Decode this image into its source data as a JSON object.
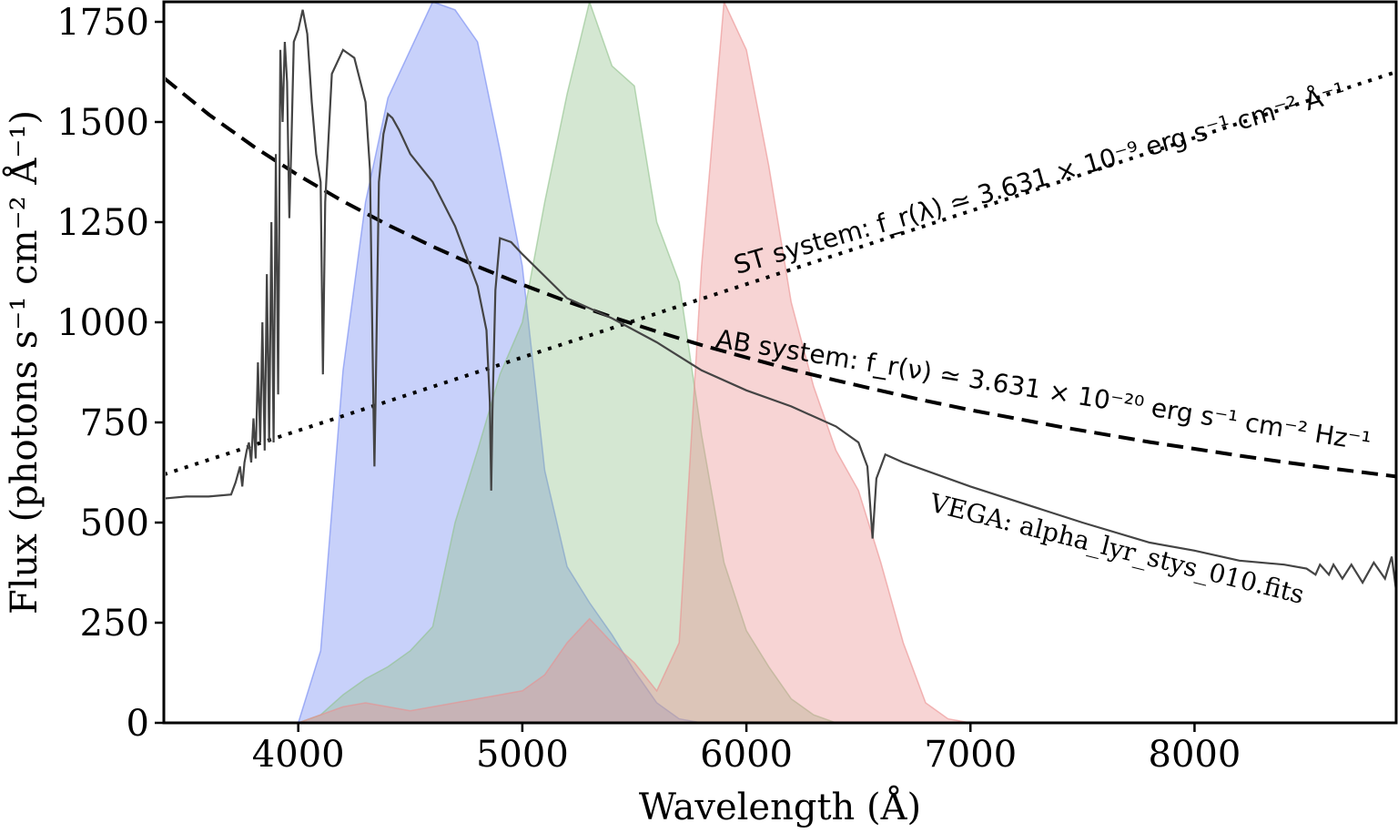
{
  "chart_data": {
    "type": "line",
    "xlabel": "Wavelength  (Å)",
    "ylabel": "Flux  (photons s⁻¹ cm⁻² Å⁻¹)",
    "xlim": [
      3400,
      8900
    ],
    "ylim": [
      0,
      1800
    ],
    "xticks": [
      4000,
      5000,
      6000,
      7000,
      8000
    ],
    "yticks": [
      0,
      250,
      500,
      750,
      1000,
      1250,
      1500,
      1750
    ],
    "grid": false,
    "legend": "none",
    "annotations": {
      "st": "ST system: f_r(λ) ≃ 3.631 × 10⁻⁹ erg s⁻¹ cm⁻² Å⁻¹",
      "ab": "AB system: f_r(ν) ≃ 3.631 × 10⁻²⁰ erg s⁻¹ cm⁻² Hz⁻¹",
      "vega": "VEGA: alpha_lyr_stys_010.fits"
    },
    "colors": {
      "blue": "#6f86f2",
      "green": "#8fc18a",
      "red": "#eb8d8d",
      "vega": "#444444",
      "reference": "#000000"
    },
    "series": [
      {
        "style": "dashed",
        "x": [
          3400,
          3600,
          3800,
          4000,
          4200,
          4400,
          4600,
          4800,
          5000,
          5200,
          5400,
          5600,
          5800,
          6000,
          6200,
          6400,
          6600,
          6800,
          7000,
          7200,
          7400,
          7600,
          7800,
          8000,
          8200,
          8400,
          8600,
          8800,
          8900
        ],
        "y": [
          1610,
          1519,
          1439,
          1367,
          1302,
          1243,
          1189,
          1139,
          1094,
          1052,
          1013,
          977,
          943,
          912,
          882,
          855,
          829,
          804,
          781,
          760,
          739,
          720,
          701,
          684,
          667,
          651,
          636,
          622,
          615
        ]
      },
      {
        "style": "dotted",
        "x": [
          3400,
          8900
        ],
        "y": [
          620,
          1625
        ]
      },
      {
        "style": "solid",
        "x": [
          3400,
          3500,
          3600,
          3700,
          3720,
          3740,
          3750,
          3760,
          3770,
          3780,
          3790,
          3800,
          3810,
          3820,
          3830,
          3840,
          3850,
          3860,
          3870,
          3880,
          3890,
          3900,
          3910,
          3920,
          3930,
          3940,
          3950,
          3960,
          3970,
          3980,
          4000,
          4020,
          4040,
          4060,
          4080,
          4100,
          4110,
          4120,
          4150,
          4200,
          4250,
          4300,
          4320,
          4335,
          4340,
          4345,
          4360,
          4380,
          4400,
          4420,
          4450,
          4500,
          4600,
          4700,
          4800,
          4840,
          4855,
          4861,
          4867,
          4880,
          4900,
          4950,
          5000,
          5200,
          5400,
          5600,
          5800,
          6000,
          6200,
          6400,
          6500,
          6540,
          6563,
          6580,
          6620,
          6700,
          7000,
          7500,
          7800,
          8000,
          8200,
          8400,
          8500,
          8540,
          8560,
          8600,
          8620,
          8660,
          8700,
          8750,
          8800,
          8850,
          8880,
          8900
        ],
        "y": [
          560,
          565,
          565,
          570,
          600,
          640,
          590,
          650,
          680,
          700,
          650,
          760,
          660,
          900,
          700,
          1000,
          680,
          1120,
          700,
          1250,
          700,
          1420,
          820,
          1680,
          1500,
          1700,
          1600,
          1260,
          1460,
          1700,
          1730,
          1780,
          1720,
          1550,
          1420,
          1350,
          870,
          1300,
          1620,
          1680,
          1660,
          1550,
          1380,
          800,
          640,
          800,
          1350,
          1470,
          1520,
          1510,
          1480,
          1420,
          1350,
          1240,
          1090,
          980,
          800,
          580,
          780,
          1080,
          1210,
          1200,
          1170,
          1060,
          1010,
          950,
          880,
          830,
          790,
          740,
          700,
          640,
          460,
          610,
          670,
          650,
          590,
          500,
          450,
          430,
          405,
          395,
          385,
          370,
          395,
          370,
          395,
          360,
          395,
          350,
          400,
          360,
          415,
          330
        ]
      },
      {
        "style": "fill",
        "color": "blue",
        "x": [
          4000,
          4100,
          4200,
          4300,
          4400,
          4500,
          4600,
          4700,
          4800,
          4900,
          5000,
          5100,
          5200,
          5300,
          5400,
          5500,
          5600,
          5700,
          5800,
          5900,
          6000
        ],
        "y": [
          0,
          180,
          880,
          1300,
          1560,
          1680,
          1800,
          1780,
          1700,
          1430,
          1140,
          630,
          390,
          300,
          220,
          130,
          50,
          10,
          0,
          0,
          0
        ]
      },
      {
        "style": "fill",
        "color": "green",
        "x": [
          4000,
          4100,
          4200,
          4300,
          4400,
          4500,
          4600,
          4700,
          4800,
          4900,
          5000,
          5100,
          5200,
          5300,
          5400,
          5500,
          5600,
          5700,
          5800,
          5900,
          6000,
          6100,
          6200,
          6300,
          6400,
          6500,
          6600,
          6700,
          6800,
          6900,
          7000
        ],
        "y": [
          0,
          20,
          70,
          110,
          140,
          180,
          240,
          500,
          680,
          870,
          1000,
          1300,
          1570,
          1800,
          1640,
          1590,
          1250,
          1100,
          720,
          400,
          230,
          140,
          60,
          20,
          0,
          0,
          0,
          0,
          0,
          0,
          0
        ]
      },
      {
        "style": "fill",
        "color": "red",
        "x": [
          4000,
          4100,
          4200,
          4300,
          4400,
          4500,
          4600,
          4700,
          4800,
          4900,
          5000,
          5100,
          5200,
          5300,
          5400,
          5500,
          5600,
          5700,
          5800,
          5900,
          6000,
          6100,
          6200,
          6300,
          6400,
          6500,
          6600,
          6700,
          6800,
          6900,
          7000
        ],
        "y": [
          0,
          20,
          40,
          50,
          40,
          30,
          40,
          50,
          60,
          70,
          80,
          120,
          200,
          260,
          200,
          150,
          80,
          200,
          1140,
          1800,
          1680,
          1390,
          1050,
          840,
          680,
          580,
          400,
          200,
          50,
          10,
          0
        ]
      }
    ]
  }
}
